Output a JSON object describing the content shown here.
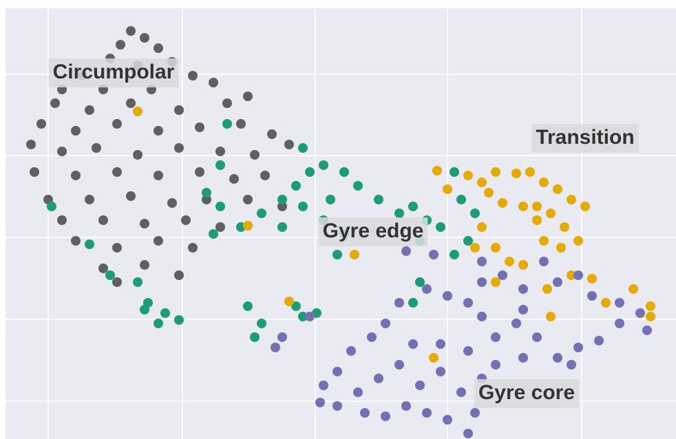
{
  "chart_data": {
    "type": "scatter",
    "xlim": [
      8,
      982
    ],
    "ylim": [
      0,
      626
    ],
    "xticks": [
      70,
      265,
      458,
      650,
      845
    ],
    "yticks": [
      55,
      174,
      293,
      412,
      530
    ],
    "grid": true,
    "series": [
      {
        "name": "Circumpolar",
        "color": "#606060",
        "x": [
          190,
          210,
          175,
          230,
          160,
          250,
          200,
          120,
          280,
          90,
          150,
          220,
          310,
          80,
          130,
          190,
          260,
          330,
          360,
          60,
          110,
          170,
          230,
          290,
          350,
          395,
          45,
          90,
          140,
          200,
          260,
          320,
          370,
          420,
          50,
          110,
          170,
          230,
          290,
          340,
          385,
          70,
          130,
          190,
          250,
          300,
          360,
          410,
          90,
          150,
          210,
          270,
          320,
          110,
          170,
          230,
          280,
          150,
          210,
          260,
          170
        ],
        "y": [
          593,
          583,
          573,
          568,
          553,
          548,
          543,
          528,
          528,
          508,
          508,
          508,
          518,
          488,
          478,
          488,
          478,
          488,
          498,
          458,
          448,
          458,
          448,
          453,
          458,
          443,
          428,
          418,
          423,
          413,
          423,
          418,
          413,
          428,
          388,
          383,
          388,
          383,
          388,
          378,
          383,
          348,
          348,
          353,
          343,
          348,
          348,
          338,
          318,
          318,
          313,
          318,
          308,
          288,
          278,
          288,
          278,
          248,
          253,
          238,
          228
        ]
      },
      {
        "name": "Transition",
        "color": "#1b9e77",
        "x": [
          130,
          160,
          200,
          215,
          240,
          260,
          230,
          210,
          300,
          320,
          310,
          350,
          380,
          410,
          430,
          450,
          470,
          500,
          520,
          480,
          440,
          410,
          470,
          500,
          490,
          550,
          580,
          600,
          620,
          610,
          640,
          660,
          670,
          690,
          680,
          660,
          360,
          380,
          370,
          430,
          440,
          460,
          330,
          320,
          610,
          600,
          75,
          440
        ],
        "y": [
          283,
          238,
          228,
          198,
          183,
          173,
          168,
          188,
          358,
          338,
          298,
          308,
          328,
          348,
          368,
          388,
          398,
          388,
          368,
          348,
          338,
          308,
          318,
          298,
          268,
          348,
          328,
          338,
          318,
          288,
          308,
          388,
          348,
          328,
          288,
          268,
          193,
          168,
          148,
          193,
          178,
          183,
          458,
          398,
          228,
          198,
          338,
          423
        ]
      },
      {
        "name": "Gyre edge",
        "color": "#e6ab02",
        "x": [
          635,
          650,
          680,
          700,
          720,
          750,
          770,
          790,
          810,
          830,
          850,
          730,
          760,
          780,
          800,
          820,
          840,
          790,
          700,
          690,
          720,
          740,
          760,
          815,
          830,
          860,
          880,
          920,
          945,
          945,
          800,
          795,
          420,
          515,
          360,
          200,
          630,
          720,
          780,
          710
        ],
        "y": [
          390,
          363,
          383,
          373,
          388,
          386,
          388,
          373,
          363,
          348,
          338,
          343,
          338,
          318,
          328,
          308,
          288,
          288,
          308,
          278,
          278,
          258,
          253,
          278,
          238,
          233,
          198,
          218,
          193,
          178,
          178,
          218,
          200,
          268,
          310,
          476,
          118,
          228,
          338,
          358
        ]
      },
      {
        "name": "Gyre core",
        "color": "#7570b3",
        "x": [
          590,
          630,
          700,
          730,
          760,
          790,
          810,
          840,
          860,
          900,
          930,
          940,
          900,
          870,
          840,
          830,
          810,
          780,
          750,
          720,
          700,
          680,
          650,
          620,
          580,
          560,
          540,
          510,
          490,
          470,
          465,
          490,
          520,
          550,
          580,
          610,
          640,
          670,
          690,
          680,
          650,
          620,
          590,
          560,
          530,
          600,
          640,
          680,
          720,
          760,
          760,
          700,
          410,
          400,
          450,
          700
        ],
        "y": [
          273,
          268,
          258,
          238,
          218,
          258,
          228,
          238,
          208,
          198,
          183,
          158,
          168,
          143,
          133,
          108,
          118,
          148,
          168,
          148,
          178,
          198,
          208,
          218,
          198,
          168,
          148,
          128,
          98,
          78,
          53,
          48,
          68,
          88,
          108,
          78,
          98,
          68,
          38,
          8,
          28,
          38,
          48,
          33,
          38,
          138,
          138,
          128,
          108,
          118,
          188,
          88,
          148,
          133,
          178,
          228
        ]
      }
    ]
  }
}
